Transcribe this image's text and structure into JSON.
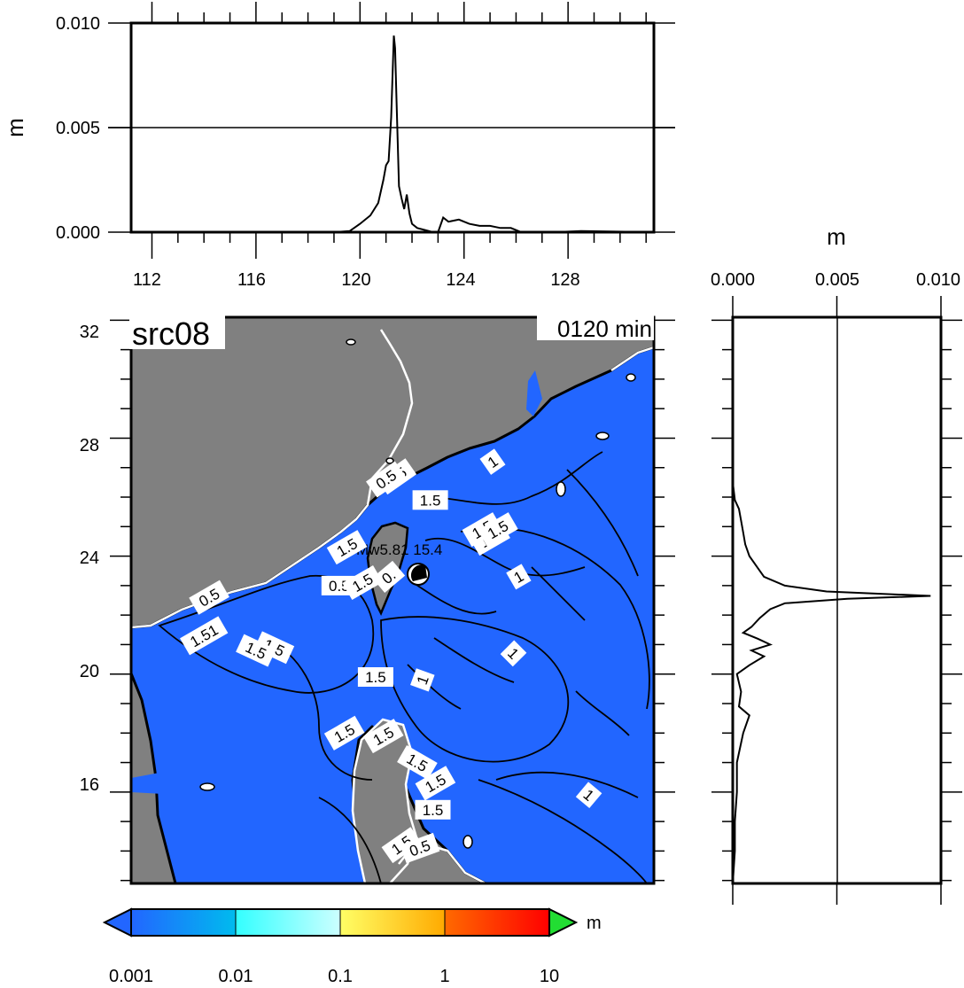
{
  "chart_data": [
    {
      "type": "line",
      "panel": "top profile",
      "ylabel": "m",
      "ylim": [
        0.0,
        0.01
      ],
      "yticks": [
        "0.000",
        "0.005",
        "0.010"
      ],
      "xlim": [
        111.2,
        131.3
      ],
      "xticks": [
        "112",
        "116",
        "120",
        "124",
        "128"
      ],
      "series": [
        {
          "x": [
            111.2,
            119.0,
            119.6,
            120.0,
            120.4,
            120.7,
            120.9,
            121.0,
            121.1,
            121.2,
            121.3,
            121.35,
            121.4,
            121.5,
            121.6,
            121.7,
            121.8,
            121.9,
            122.0,
            122.2,
            122.5,
            122.8,
            123.0,
            123.2,
            123.4,
            123.8,
            124.2,
            124.6,
            125.0,
            125.4,
            125.8,
            126.2,
            127.5,
            128.5,
            131.3
          ],
          "y": [
            0.0,
            0.0,
            5e-05,
            0.0004,
            0.0008,
            0.0014,
            0.0025,
            0.0032,
            0.0034,
            0.0055,
            0.0094,
            0.0088,
            0.0065,
            0.0022,
            0.0016,
            0.0011,
            0.0018,
            0.0009,
            0.0004,
            0.0002,
            0.0001,
            0.0,
            0.0,
            0.0007,
            0.0005,
            0.0006,
            0.0004,
            0.0003,
            0.0003,
            0.0002,
            0.0002,
            0.0,
            0.0,
            5e-05,
            0.0
          ]
        }
      ]
    },
    {
      "type": "line",
      "panel": "right profile",
      "xlabel": "m",
      "xlim": [
        0.0,
        0.01
      ],
      "xticks": [
        "0.000",
        "0.005",
        "0.010"
      ],
      "ylim": [
        12.9,
        32.1
      ],
      "yaxis": "latitude (shared with map)",
      "series": [
        {
          "lat": [
            12.9,
            14.0,
            15.0,
            16.0,
            17.0,
            18.0,
            18.6,
            18.9,
            19.4,
            20.0,
            20.3,
            20.6,
            20.8,
            21.0,
            21.2,
            21.4,
            21.6,
            21.9,
            22.2,
            22.4,
            22.55,
            22.65,
            22.8,
            23.0,
            23.3,
            23.6,
            24.0,
            24.4,
            24.8,
            25.2,
            25.6,
            25.9,
            26.5,
            28.0,
            30.0,
            32.1
          ],
          "m": [
            0.0,
            0.0001,
            0.0001,
            0.0002,
            0.0002,
            0.0005,
            0.0008,
            0.0003,
            0.0004,
            0.0002,
            0.0008,
            0.0015,
            0.0009,
            0.0018,
            0.0012,
            0.0005,
            0.0009,
            0.0013,
            0.0018,
            0.0025,
            0.0055,
            0.0095,
            0.0045,
            0.0025,
            0.0015,
            0.0012,
            0.0008,
            0.0006,
            0.0005,
            0.0004,
            0.0003,
            0.0001,
            0.0,
            0.0,
            0.0,
            0.0
          ]
        }
      ]
    },
    {
      "type": "heatmap",
      "panel": "map",
      "title": "src08",
      "time_label": "0120 min",
      "lon_range": [
        111.2,
        131.3
      ],
      "lat_range": [
        12.9,
        32.1
      ],
      "lon_ticks": [
        "112",
        "116",
        "120",
        "124",
        "128"
      ],
      "lat_ticks": [
        "16",
        "20",
        "24",
        "28",
        "32"
      ],
      "epicenter_label": "Mw5.81 15.4",
      "epicenter": [
        122.4,
        23.4
      ],
      "contour_labels": [
        "1",
        "1.5",
        "1.5",
        "0.5",
        "1.5",
        "0.5",
        "1.5",
        "0.5",
        "1.51",
        "1.5",
        "1.5",
        "1",
        "1.5",
        "1.5",
        "1.5",
        "1",
        "1",
        "1",
        "1.5",
        "1.5",
        "1.5",
        "1.5",
        "0.5",
        "1.5",
        "0.",
        "1.5",
        "1.5"
      ]
    }
  ],
  "colorbar": {
    "unit": "m",
    "labels": [
      "0.001",
      "0.01",
      "0.1",
      "1",
      "10"
    ],
    "colors": [
      "#2266ff",
      "#00c0ee",
      "#44ffff",
      "#bfffff",
      "#ffff55",
      "#ffaa00",
      "#ff6600",
      "#ff0000"
    ],
    "under_color": "#2266ff",
    "over_color": "#22dd33"
  },
  "colors": {
    "land": "#808080",
    "sea": "#2266ff",
    "coast": "#ffffff",
    "contour": "#000000"
  }
}
